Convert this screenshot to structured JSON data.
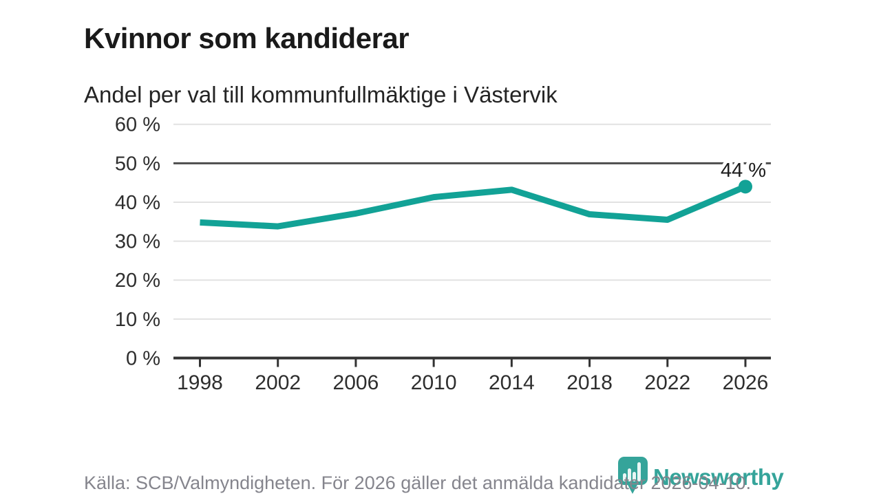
{
  "header": {
    "title": "Kvinnor som kandiderar",
    "subtitle": "Andel per val till kommunfullmäktige i Västervik"
  },
  "chart_data": {
    "type": "line",
    "title": "Kvinnor som kandiderar",
    "subtitle": "Andel per val till kommunfullmäktige i Västervik",
    "x": [
      1998,
      2002,
      2006,
      2010,
      2014,
      2018,
      2022,
      2026
    ],
    "values": [
      34.8,
      33.8,
      37.1,
      41.3,
      43.2,
      36.9,
      35.5,
      44.0
    ],
    "end_label": "44 %",
    "unit": "%",
    "ylim": [
      0,
      60
    ],
    "ytick_step": 10,
    "ytick_suffix": " %",
    "reference_line": 50,
    "grid": "horizontal",
    "legend": "none",
    "line_color": "#12a296",
    "axis_color": "#333333",
    "gridline_color": "#e2e2e2",
    "reference_line_color": "#4d4d4d"
  },
  "footer": {
    "source": "Källa: SCB/Valmyndigheten. För 2026 gäller det anmälda kandidater 2026-04-10."
  },
  "logo": {
    "text": "Newsworthy",
    "color": "#35a49a",
    "icon": "newsworthy-pin-chart-icon"
  }
}
